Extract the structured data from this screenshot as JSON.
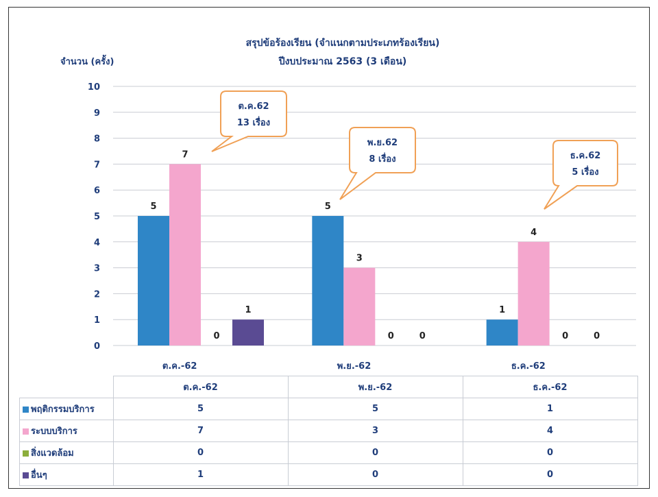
{
  "chart_data": {
    "type": "bar",
    "title": "สรุปข้อร้องเรียน (จำแนกตามประเภทร้องเรียน)",
    "subtitle": "ปีงบประมาณ 2563 (3 เดือน)",
    "ylabel": "จำนวน (ครั้ง)",
    "ylim": [
      0,
      10
    ],
    "yticks": [
      0,
      1,
      2,
      3,
      4,
      5,
      6,
      7,
      8,
      9,
      10
    ],
    "categories": [
      "ต.ค.-62",
      "พ.ย.-62",
      "ธ.ค.-62"
    ],
    "series": [
      {
        "name": "พฤติกรรมบริการ",
        "values": [
          5,
          5,
          1
        ],
        "color": "#2f86c7"
      },
      {
        "name": "ระบบบริการ",
        "values": [
          7,
          3,
          4
        ],
        "color": "#f4a6cd"
      },
      {
        "name": "สิ่งแวดล้อม",
        "values": [
          0,
          0,
          0
        ],
        "color": "#8cae3c"
      },
      {
        "name": "อื่นๆ",
        "values": [
          1,
          0,
          0
        ],
        "color": "#5a4b93"
      }
    ],
    "grid": true,
    "legend": "table-below",
    "callouts": [
      {
        "line1": "ต.ค.62",
        "line2": "13 เรื่อง"
      },
      {
        "line1": "พ.ย.62",
        "line2": "8 เรื่อง"
      },
      {
        "line1": "ธ.ค.62",
        "line2": "5 เรื่อง"
      }
    ]
  }
}
